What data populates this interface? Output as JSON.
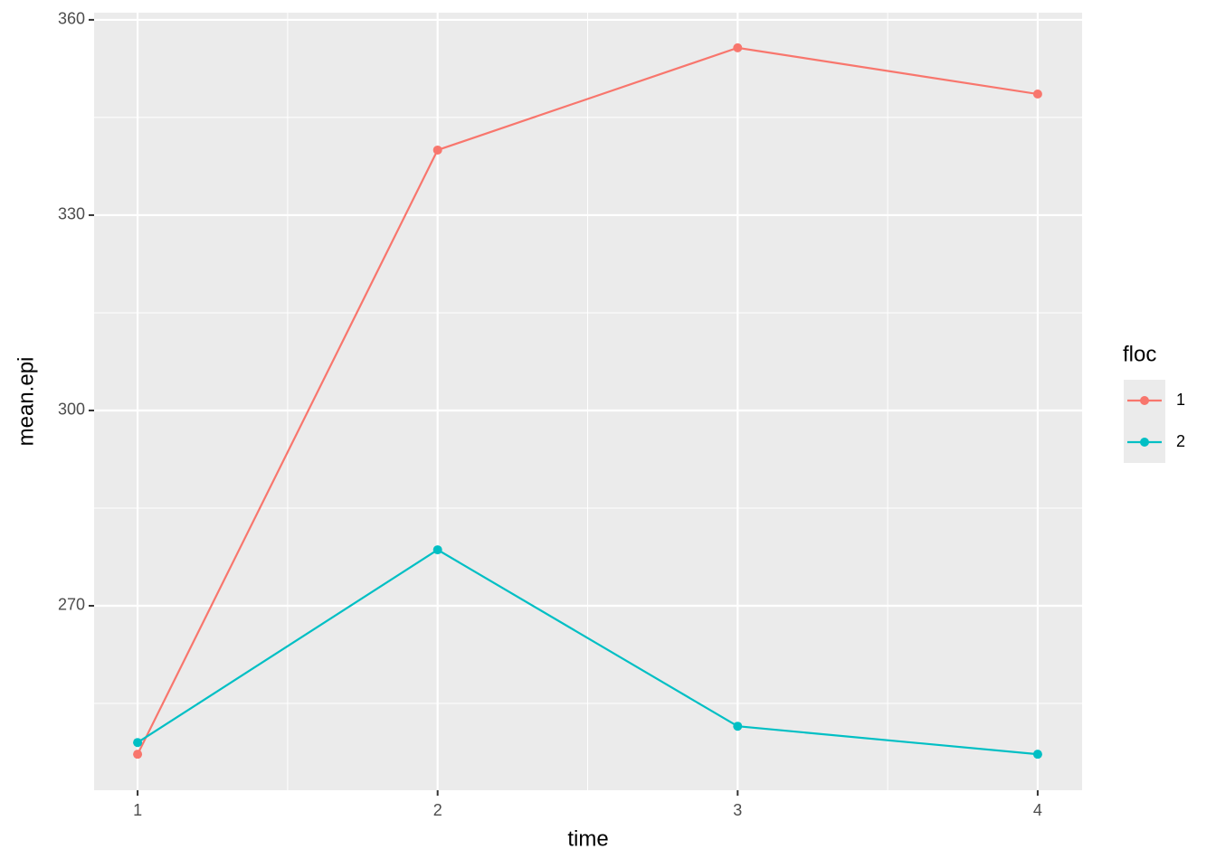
{
  "chart_data": {
    "type": "line",
    "x": [
      1,
      2,
      3,
      4
    ],
    "xlim": [
      0.855,
      4.148
    ],
    "xticks": [
      1,
      2,
      3,
      4
    ],
    "ylim": [
      241.67,
      361.1
    ],
    "yticks": [
      270,
      300,
      330,
      360
    ],
    "x_label": "time",
    "y_label": "mean.epi",
    "legend_title": "floc",
    "legend_position": "right",
    "grid": true,
    "series": [
      {
        "name": "1",
        "color": "#F8766D",
        "values": [
          247.2,
          340.0,
          355.7,
          348.6
        ]
      },
      {
        "name": "2",
        "color": "#00BFC4",
        "values": [
          249.0,
          278.6,
          251.5,
          247.2
        ]
      }
    ]
  }
}
